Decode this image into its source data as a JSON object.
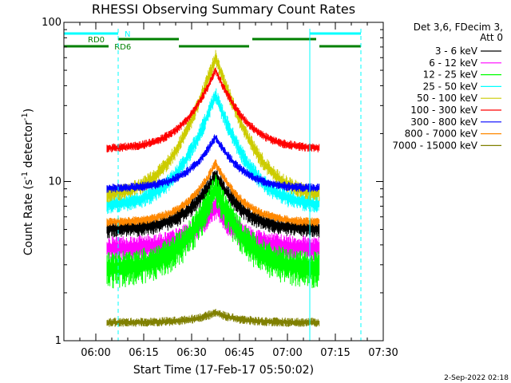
{
  "chart_data": {
    "type": "line",
    "title": "RHESSI Observing Summary Count Rates",
    "xlabel": "Start Time (17-Feb-17 05:50:02)",
    "ylabel_main": "Count Rate (s",
    "ylabel_sup1": "-1",
    "ylabel_mid": " detector",
    "ylabel_sup2": "-1",
    "ylabel_end": ")",
    "yscale": "log",
    "x_unit": "minutes after 05:50:02",
    "xlim": [
      0,
      100
    ],
    "ylim": [
      1,
      100
    ],
    "x_ticks": [
      {
        "t": 10,
        "label": "06:00"
      },
      {
        "t": 25,
        "label": "06:15"
      },
      {
        "t": 40,
        "label": "06:30"
      },
      {
        "t": 55,
        "label": "06:45"
      },
      {
        "t": 70,
        "label": "07:00"
      },
      {
        "t": 85,
        "label": "07:15"
      },
      {
        "t": 100,
        "label": "07:30"
      }
    ],
    "y_ticks": [
      {
        "v": 1,
        "label": "1"
      },
      {
        "v": 10,
        "label": "10"
      },
      {
        "v": 100,
        "label": "100"
      }
    ],
    "legend_header": [
      "Det 3,6, FDecim 3,",
      "Att 0"
    ],
    "data_start": 13.5,
    "data_end": 80,
    "peak_time": 47.5,
    "series": [
      {
        "name": "3 - 6 keV",
        "color": "#000000",
        "base": 5.0,
        "peak": 11,
        "noise": 0.1
      },
      {
        "name": "6 - 12 keV",
        "color": "#ff00ff",
        "base": 3.8,
        "peak": 7,
        "noise": 0.14
      },
      {
        "name": "12 - 25 keV",
        "color": "#00ff00",
        "base": 2.8,
        "peak": 9,
        "noise": 0.2
      },
      {
        "name": "25 - 50 keV",
        "color": "#00ffff",
        "base": 7.0,
        "peak": 35,
        "noise": 0.1
      },
      {
        "name": "50 - 100 keV",
        "color": "#cccc00",
        "base": 8.0,
        "peak": 60,
        "noise": 0.09
      },
      {
        "name": "100 - 300 keV",
        "color": "#ff0000",
        "base": 16.0,
        "peak": 50,
        "noise": 0.05
      },
      {
        "name": "300 - 800 keV",
        "color": "#0000ff",
        "base": 9.0,
        "peak": 19,
        "noise": 0.05
      },
      {
        "name": "800 - 7000 keV",
        "color": "#ff8800",
        "base": 5.5,
        "peak": 13,
        "noise": 0.05
      },
      {
        "name": "7000 - 15000 keV",
        "color": "#808000",
        "base": 1.3,
        "peak": 1.5,
        "noise": 0.05
      }
    ],
    "flags": [
      {
        "label": "N",
        "color": "#00ffff",
        "label_at": 19,
        "segments": [
          [
            0,
            17
          ],
          [
            77,
            93
          ]
        ]
      },
      {
        "label": "RD0",
        "color": "#008000",
        "label_at": 7.5,
        "segments": [
          [
            17,
            36
          ],
          [
            59,
            79
          ]
        ]
      },
      {
        "label": "RD6",
        "color": "#008000",
        "label_at": 15.8,
        "segments": [
          [
            0,
            14
          ],
          [
            36,
            58
          ],
          [
            80,
            93
          ]
        ]
      }
    ],
    "markers": [
      {
        "t": 17,
        "color": "#00ffff",
        "style": "dashed"
      },
      {
        "t": 77,
        "color": "#00ffff",
        "style": "solid"
      },
      {
        "t": 93,
        "color": "#00ffff",
        "style": "dashed"
      }
    ]
  },
  "footer": {
    "timestamp": "2-Sep-2022 02:18"
  }
}
